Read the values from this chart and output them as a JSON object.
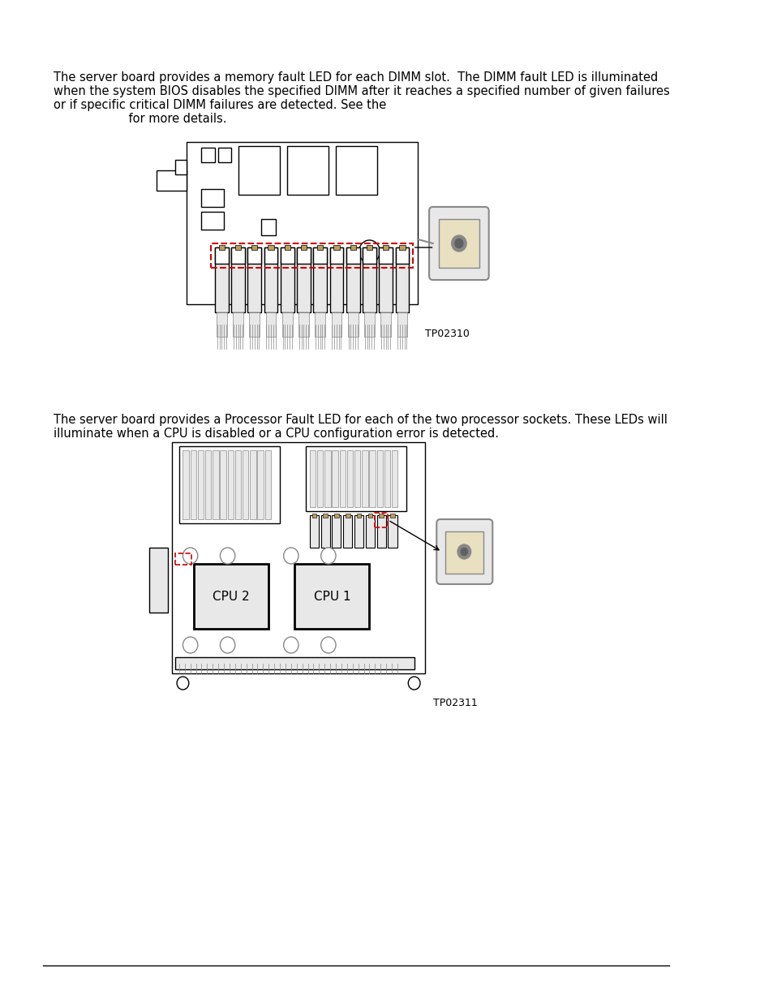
{
  "bg_color": "#ffffff",
  "text_color": "#000000",
  "line_color": "#000000",
  "red_dashed": "#cc0000",
  "gray_fill": "#d0d0d0",
  "light_gray": "#e8e8e8",
  "dark_gray": "#888888",
  "tan_fill": "#e8e0c0",
  "text1_lines": [
    "The server board provides a memory fault LED for each DIMM slot.  The DIMM fault LED is illuminated",
    "when the system BIOS disables the specified DIMM after it reaches a specified number of given failures",
    "or if specific critical DIMM failures are detected. See the",
    "                    for more details."
  ],
  "caption1": "TP02310",
  "text2_lines": [
    "The server board provides a Processor Fault LED for each of the two processor sockets. These LEDs will",
    "illuminate when a CPU is disabled or a CPU configuration error is detected."
  ],
  "caption2": "TP02311",
  "cpu1_label": "CPU 1",
  "cpu2_label": "CPU 2"
}
